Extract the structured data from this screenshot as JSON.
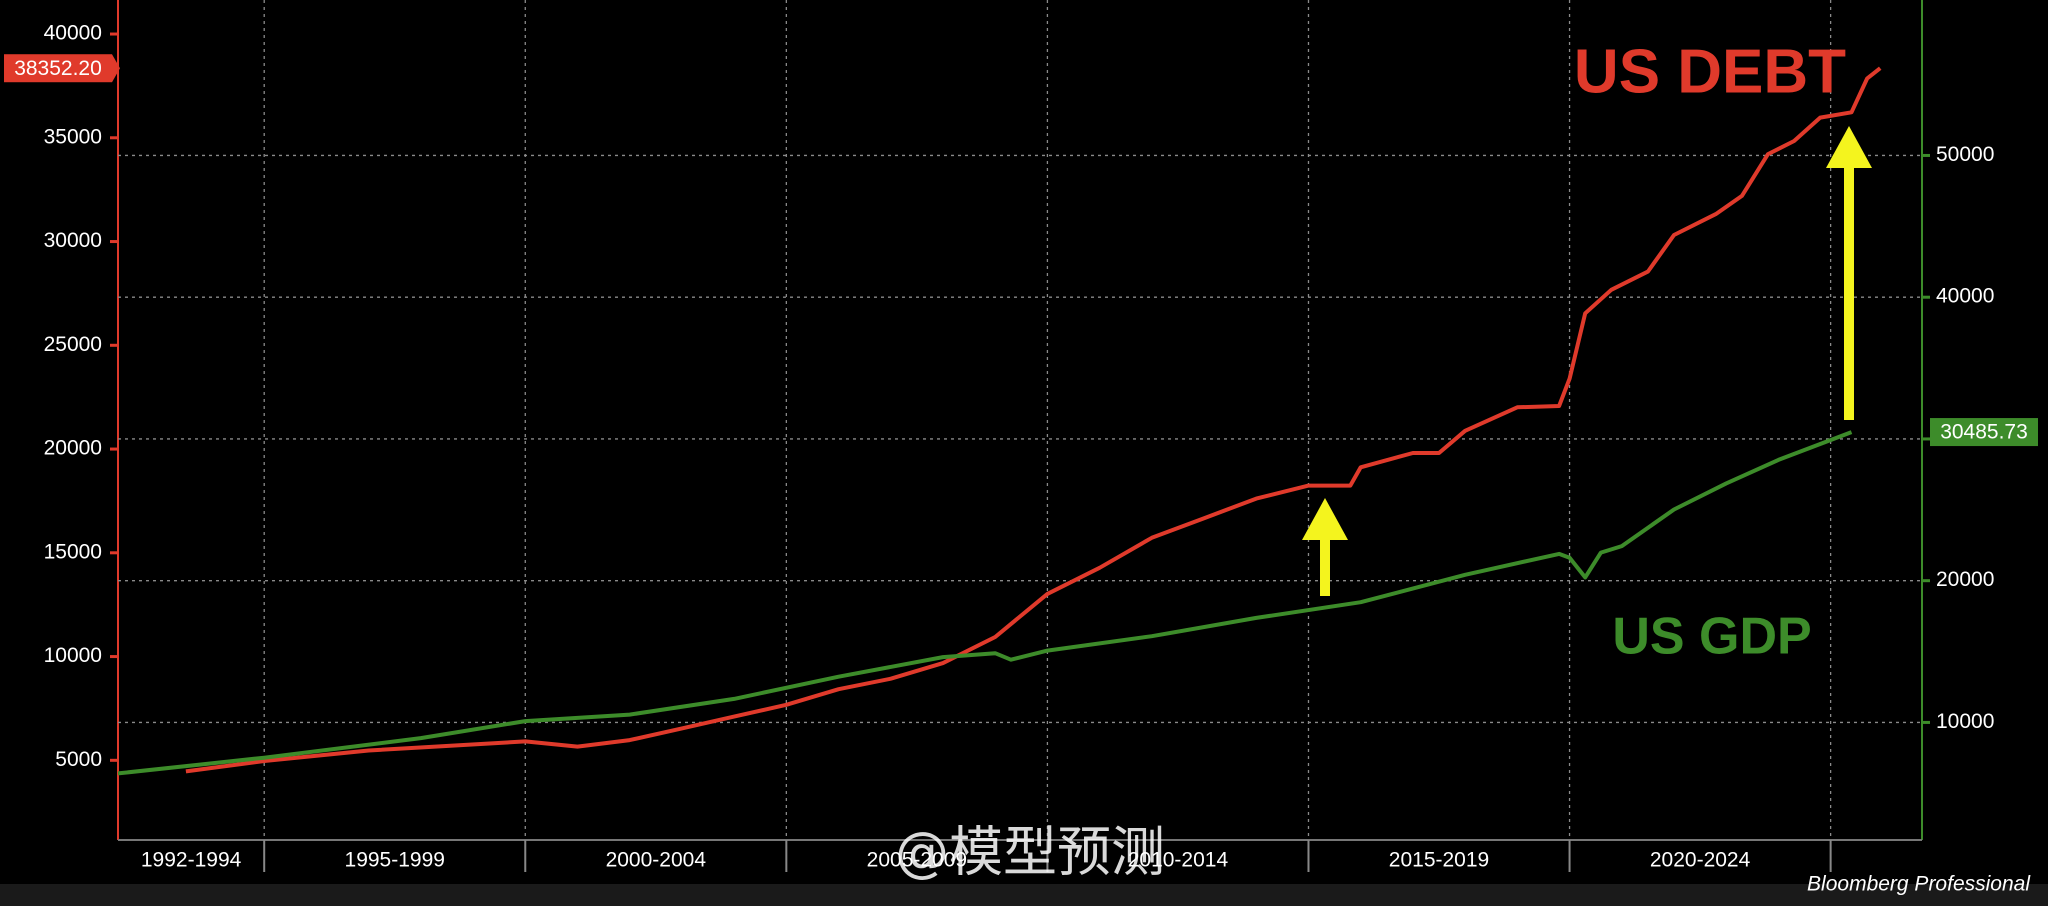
{
  "chart_data": {
    "type": "line",
    "xlim": [
      1992.2,
      2026.75
    ],
    "xticks": [
      1995,
      2000,
      2005,
      2010,
      2015,
      2020,
      2025
    ],
    "x_period_labels": [
      "1992-1994",
      "1995-1999",
      "2000-2004",
      "2005-2009",
      "2010-2014",
      "2015-2019",
      "2020-2024",
      null
    ],
    "ylim": [
      1160,
      41640
    ],
    "yticks": [
      5000,
      10000,
      15000,
      20000,
      25000,
      30000,
      35000,
      40000
    ],
    "y2lim": [
      1705,
      60968
    ],
    "y2ticks": [
      10000,
      20000,
      30000,
      40000,
      50000
    ],
    "grid": true,
    "series": [
      {
        "name": "US DEBT",
        "color": "#e03a2b",
        "axis": "y",
        "x": [
          1993.5,
          1995,
          1997,
          2000,
          2001,
          2002,
          2003,
          2004,
          2005,
          2006,
          2007,
          2008,
          2009,
          2010,
          2011,
          2012,
          2013,
          2014,
          2015,
          2015.8,
          2016,
          2017,
          2017.5,
          2018,
          2019,
          2019.8,
          2020.0,
          2020.3,
          2020.8,
          2021.5,
          2022,
          2022.8,
          2023.3,
          2023.8,
          2024.3,
          2024.8,
          2025.4,
          2025.7,
          2025.95
        ],
        "values": [
          4465,
          4969,
          5472,
          5912,
          5660,
          5975,
          6540,
          7107,
          7673,
          8428,
          8931,
          9686,
          10943,
          13019,
          14277,
          15723,
          16667,
          17610,
          18239,
          18239,
          19119,
          19811,
          19811,
          20881,
          22013,
          22076,
          23396,
          26541,
          27673,
          28553,
          30314,
          31321,
          32201,
          34214,
          34843,
          35975,
          36226,
          37862,
          38352.2
        ],
        "value_labels": [
          null,
          null,
          null,
          null,
          null,
          null,
          null,
          null,
          null,
          null,
          null,
          null,
          null,
          null,
          null,
          null,
          null,
          null,
          null,
          null,
          null,
          null,
          null,
          null,
          null,
          null,
          null,
          null,
          null,
          null,
          null,
          null,
          null,
          null,
          null,
          null,
          null,
          null,
          "38352.20"
        ]
      },
      {
        "name": "US GDP",
        "color": "#3d8c2a",
        "axis": "y2",
        "x": [
          1992.2,
          1995,
          1998,
          2000,
          2002,
          2004,
          2006,
          2008,
          2009.0,
          2009.3,
          2010,
          2012,
          2014,
          2016,
          2018,
          2019.8,
          2020.0,
          2020.3,
          2020.6,
          2021,
          2022,
          2023,
          2024,
          2025.4
        ],
        "values": [
          6406,
          7512,
          8894,
          10092,
          10553,
          11659,
          13226,
          14608,
          14885,
          14424,
          15069,
          16083,
          17373,
          18479,
          20415,
          21889,
          21613,
          20230,
          21982,
          22442,
          25023,
          26866,
          28525,
          30485.73
        ],
        "value_labels": [
          null,
          null,
          null,
          null,
          null,
          null,
          null,
          null,
          null,
          null,
          null,
          null,
          null,
          null,
          null,
          null,
          null,
          null,
          null,
          null,
          null,
          null,
          null,
          "30485.73"
        ]
      }
    ],
    "watermark": "@模型预测",
    "source": "Bloomberg Professional"
  }
}
